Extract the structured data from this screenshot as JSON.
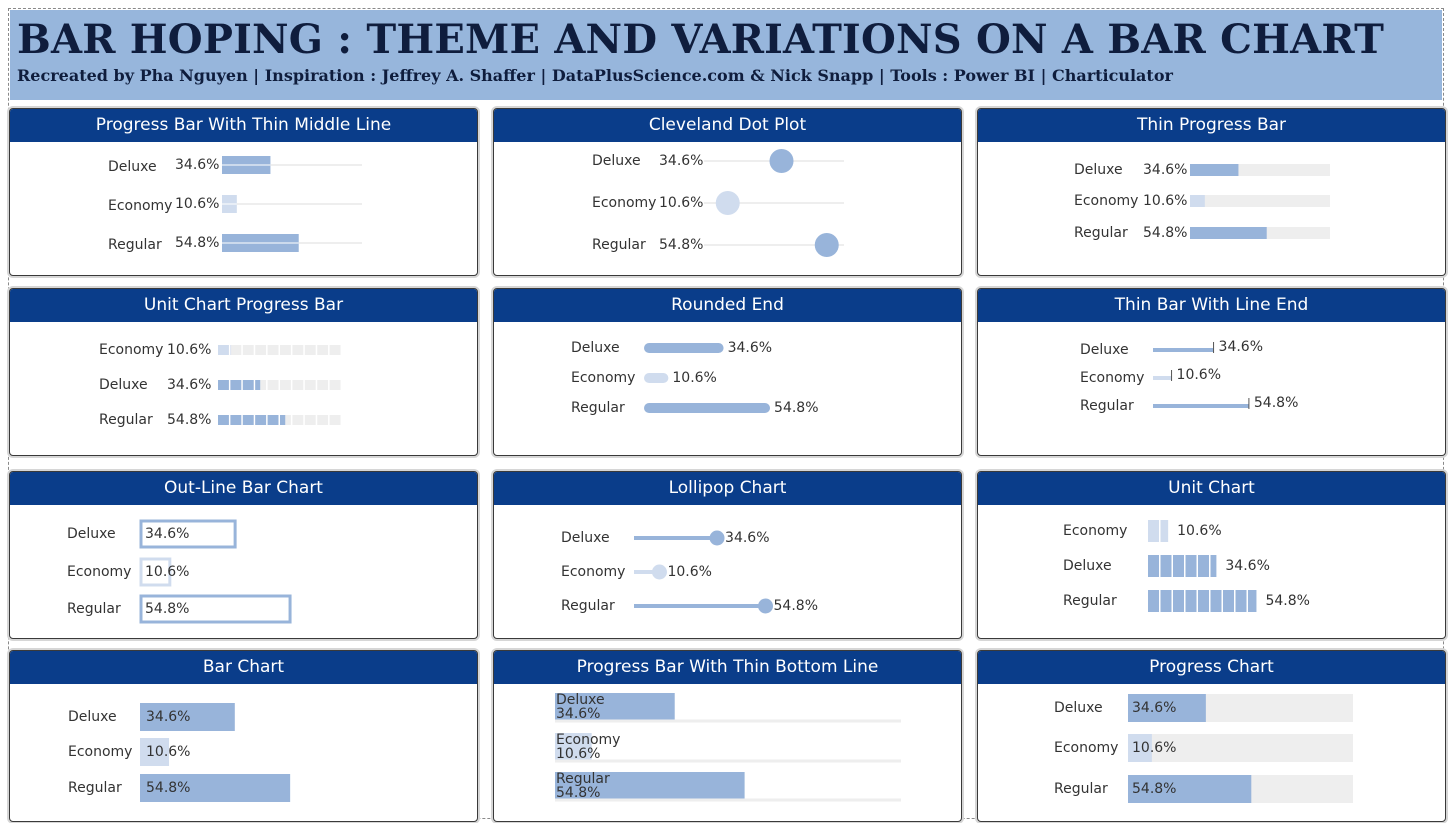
{
  "header": {
    "title": "BAR HOPING : THEME AND VARIATIONS ON A BAR CHART",
    "subtitle": "Recreated by Pha Nguyen  | Inspiration :  Jeffrey A. Shaffer | DataPlusScience.com  & Nick Snapp | Tools : Power BI | Charticulator"
  },
  "colors": {
    "header_band": "#97b6dc",
    "panel_title_bg": "#0a3d8a",
    "mark_dark": "#98b4da",
    "mark_light": "#d0dcee",
    "track": "#eeeeee"
  },
  "chart_data": [
    {
      "id": "progress-thin-middle",
      "type": "bar",
      "title": "Progress Bar With Thin Middle Line",
      "categories": [
        "Deluxe",
        "Economy",
        "Regular"
      ],
      "values": [
        34.6,
        10.6,
        54.8
      ],
      "labels": [
        "34.6%",
        "10.6%",
        "54.8%"
      ],
      "xlim": [
        0,
        100
      ]
    },
    {
      "id": "cleveland-dot",
      "type": "scatter",
      "title": "Cleveland Dot Plot",
      "categories": [
        "Deluxe",
        "Economy",
        "Regular"
      ],
      "values": [
        34.6,
        10.6,
        54.8
      ],
      "labels": [
        "34.6%",
        "10.6%",
        "54.8%"
      ],
      "xlim": [
        0,
        100
      ]
    },
    {
      "id": "thin-progress",
      "type": "bar",
      "title": "Thin Progress Bar",
      "categories": [
        "Deluxe",
        "Economy",
        "Regular"
      ],
      "values": [
        34.6,
        10.6,
        54.8
      ],
      "labels": [
        "34.6%",
        "10.6%",
        "54.8%"
      ],
      "xlim": [
        0,
        100
      ]
    },
    {
      "id": "unit-progress",
      "type": "bar",
      "title": "Unit Chart Progress Bar",
      "categories": [
        "Economy",
        "Deluxe",
        "Regular"
      ],
      "values": [
        10.6,
        34.6,
        54.8
      ],
      "labels": [
        "10.6%",
        "34.6%",
        "54.8%"
      ],
      "xlim": [
        0,
        100
      ]
    },
    {
      "id": "rounded-end",
      "type": "bar",
      "title": "Rounded End",
      "categories": [
        "Deluxe",
        "Economy",
        "Regular"
      ],
      "values": [
        34.6,
        10.6,
        54.8
      ],
      "labels": [
        "34.6%",
        "10.6%",
        "54.8%"
      ],
      "xlim": [
        0,
        100
      ]
    },
    {
      "id": "thin-line-end",
      "type": "bar",
      "title": "Thin Bar With Line End",
      "categories": [
        "Deluxe",
        "Economy",
        "Regular"
      ],
      "values": [
        34.6,
        10.6,
        54.8
      ],
      "labels": [
        "34.6%",
        "10.6%",
        "54.8%"
      ],
      "xlim": [
        0,
        100
      ]
    },
    {
      "id": "outline-bar",
      "type": "bar",
      "title": "Out-Line Bar Chart",
      "categories": [
        "Deluxe",
        "Economy",
        "Regular"
      ],
      "values": [
        34.6,
        10.6,
        54.8
      ],
      "labels": [
        "34.6%",
        "10.6%",
        "54.8%"
      ],
      "xlim": [
        0,
        100
      ]
    },
    {
      "id": "lollipop",
      "type": "scatter",
      "title": "Lollipop Chart",
      "categories": [
        "Deluxe",
        "Economy",
        "Regular"
      ],
      "values": [
        34.6,
        10.6,
        54.8
      ],
      "labels": [
        "34.6%",
        "10.6%",
        "54.8%"
      ],
      "xlim": [
        0,
        100
      ]
    },
    {
      "id": "unit-chart",
      "type": "bar",
      "title": "Unit Chart",
      "categories": [
        "Economy",
        "Deluxe",
        "Regular"
      ],
      "values": [
        10.6,
        34.6,
        54.8
      ],
      "labels": [
        "10.6%",
        "34.6%",
        "54.8%"
      ],
      "xlim": [
        0,
        100
      ]
    },
    {
      "id": "bar-chart",
      "type": "bar",
      "title": "Bar Chart",
      "categories": [
        "Deluxe",
        "Economy",
        "Regular"
      ],
      "values": [
        34.6,
        10.6,
        54.8
      ],
      "labels": [
        "34.6%",
        "10.6%",
        "54.8%"
      ],
      "xlim": [
        0,
        100
      ]
    },
    {
      "id": "progress-thin-bottom",
      "type": "bar",
      "title": "Progress Bar With Thin Bottom Line",
      "categories": [
        "Deluxe",
        "Economy",
        "Regular"
      ],
      "values": [
        34.6,
        10.6,
        54.8
      ],
      "labels": [
        "34.6%",
        "10.6%",
        "54.8%"
      ],
      "xlim": [
        0,
        100
      ]
    },
    {
      "id": "progress-chart",
      "type": "bar",
      "title": "Progress Chart",
      "categories": [
        "Deluxe",
        "Economy",
        "Regular"
      ],
      "values": [
        34.6,
        10.6,
        54.8
      ],
      "labels": [
        "34.6%",
        "10.6%",
        "54.8%"
      ],
      "xlim": [
        0,
        100
      ]
    }
  ]
}
